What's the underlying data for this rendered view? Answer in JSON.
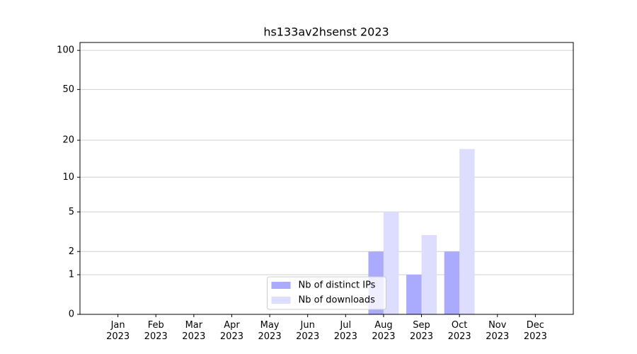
{
  "chart_data": {
    "type": "bar",
    "title": "hs133av2hsenst 2023",
    "categories": [
      "Jan\n2023",
      "Feb\n2023",
      "Mar\n2023",
      "Apr\n2023",
      "May\n2023",
      "Jun\n2023",
      "Jul\n2023",
      "Aug\n2023",
      "Sep\n2023",
      "Oct\n2023",
      "Nov\n2023",
      "Dec\n2023"
    ],
    "series": [
      {
        "name": "Nb of distinct IPs",
        "color": "#aaaaff",
        "values": [
          0,
          0,
          0,
          0,
          0,
          0,
          0,
          2,
          1,
          2,
          0,
          0
        ]
      },
      {
        "name": "Nb of downloads",
        "color": "#ddddff",
        "values": [
          0,
          0,
          0,
          0,
          0,
          0,
          0,
          5,
          3,
          17,
          0,
          0
        ]
      }
    ],
    "yscale": "log1p",
    "ylim": [
      0,
      115
    ],
    "yticks": [
      0,
      1,
      2,
      5,
      10,
      20,
      50,
      100
    ],
    "grid": true,
    "legend": "lower center"
  }
}
